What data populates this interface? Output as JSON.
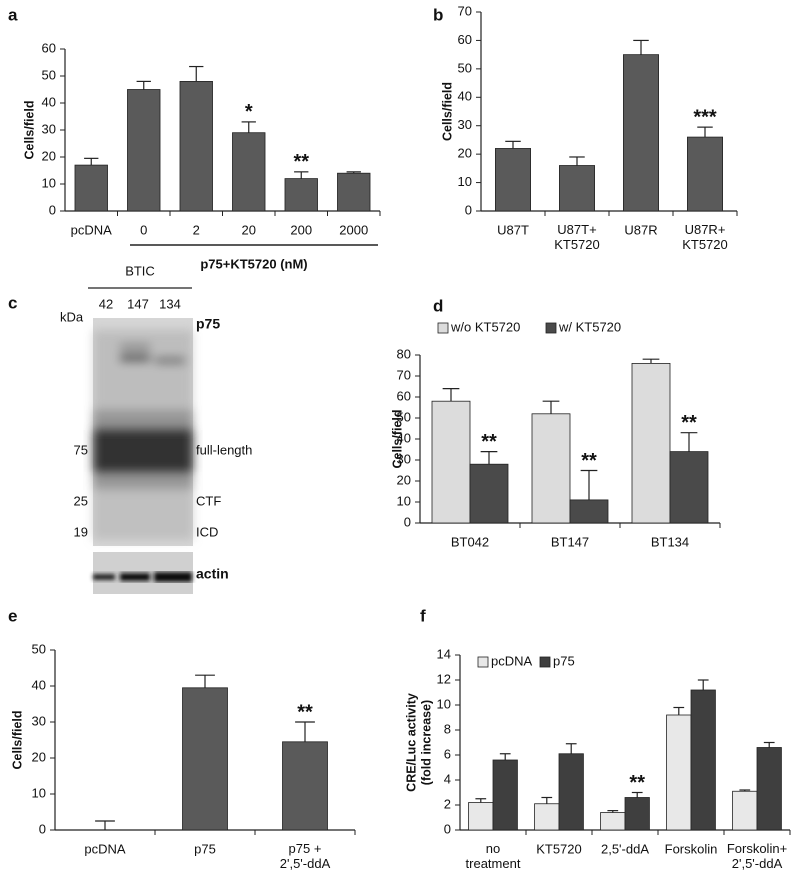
{
  "chart_data": [
    {
      "type": "bar",
      "panel": "a",
      "ylabel": "Cells/field",
      "categories": [
        "pcDNA",
        "0",
        "2",
        "20",
        "200",
        "2000"
      ],
      "values": [
        17,
        45,
        48,
        29,
        12,
        14
      ],
      "errors": [
        2.5,
        3,
        5.5,
        4,
        2.5,
        0.5
      ],
      "significance": [
        null,
        null,
        null,
        "*",
        "**",
        null
      ],
      "group_label": "p75+KT5720 (nM)",
      "color": "#5a5a5a",
      "ylim": [
        0,
        60
      ],
      "yticks": [
        0,
        10,
        20,
        30,
        40,
        50,
        60
      ]
    },
    {
      "type": "bar",
      "panel": "b",
      "ylabel": "Cells/field",
      "categories": [
        "U87T",
        "U87T+\nKT5720",
        "U87R",
        "U87R+\nKT5720"
      ],
      "values": [
        22,
        16,
        55,
        26
      ],
      "errors": [
        2.5,
        3,
        5,
        3.5
      ],
      "significance": [
        null,
        null,
        null,
        "***"
      ],
      "color": "#5a5a5a",
      "ylim": [
        0,
        70
      ],
      "yticks": [
        0,
        10,
        20,
        30,
        40,
        50,
        60,
        70
      ]
    },
    {
      "type": "grouped_bar",
      "panel": "d",
      "ylabel": "Cells/field",
      "categories": [
        "BT042",
        "BT147",
        "BT134"
      ],
      "series": [
        {
          "name": "w/o KT5720",
          "color": "#dcdcdc",
          "values": [
            58,
            52,
            76
          ],
          "errors": [
            6,
            6,
            2
          ],
          "significance": [
            null,
            null,
            null
          ]
        },
        {
          "name": "w/ KT5720",
          "color": "#4a4a4a",
          "values": [
            28,
            11,
            34
          ],
          "errors": [
            6,
            14,
            9
          ],
          "significance": [
            "**",
            "**",
            "**"
          ]
        }
      ],
      "legend": "top-left",
      "ylim": [
        0,
        80
      ],
      "yticks": [
        0,
        10,
        20,
        30,
        40,
        50,
        60,
        70,
        80
      ]
    },
    {
      "type": "bar",
      "panel": "e",
      "ylabel": "Cells/field",
      "categories": [
        "pcDNA",
        "p75",
        "p75 +\n2',5'-ddA"
      ],
      "values": [
        0,
        39.5,
        24.5
      ],
      "errors": [
        2.5,
        3.5,
        5.5
      ],
      "significance": [
        null,
        null,
        "**"
      ],
      "color": "#5a5a5a",
      "ylim": [
        0,
        50
      ],
      "yticks": [
        0,
        10,
        20,
        30,
        40,
        50
      ]
    },
    {
      "type": "grouped_bar",
      "panel": "f",
      "ylabel": "CRE/Luc activity\n(fold increase)",
      "categories": [
        "no\ntreatment",
        "KT5720",
        "2,5'-ddA",
        "Forskolin",
        "Forskolin+\n2',5'-ddA"
      ],
      "series": [
        {
          "name": "pcDNA",
          "color": "#e8e8e8",
          "values": [
            2.2,
            2.1,
            1.4,
            9.2,
            3.1
          ],
          "errors": [
            0.3,
            0.5,
            0.15,
            0.6,
            0.1
          ],
          "significance": [
            null,
            null,
            null,
            null,
            null
          ]
        },
        {
          "name": "p75",
          "color": "#3f3f3f",
          "values": [
            5.6,
            6.1,
            2.6,
            11.2,
            6.6
          ],
          "errors": [
            0.5,
            0.8,
            0.4,
            0.8,
            0.4
          ],
          "significance": [
            null,
            null,
            "**",
            null,
            null
          ]
        }
      ],
      "legend": "top-left",
      "ylim": [
        0,
        14
      ],
      "yticks": [
        0,
        2,
        4,
        6,
        8,
        10,
        12,
        14
      ]
    }
  ],
  "blot": {
    "panel": "c",
    "group": "BTIC",
    "unit": "kDa",
    "lanes": [
      "42",
      "147",
      "134"
    ],
    "markers": [
      "75",
      "25",
      "19"
    ],
    "labels": [
      "p75",
      "full-length",
      "CTF",
      "ICD",
      "actin"
    ]
  }
}
